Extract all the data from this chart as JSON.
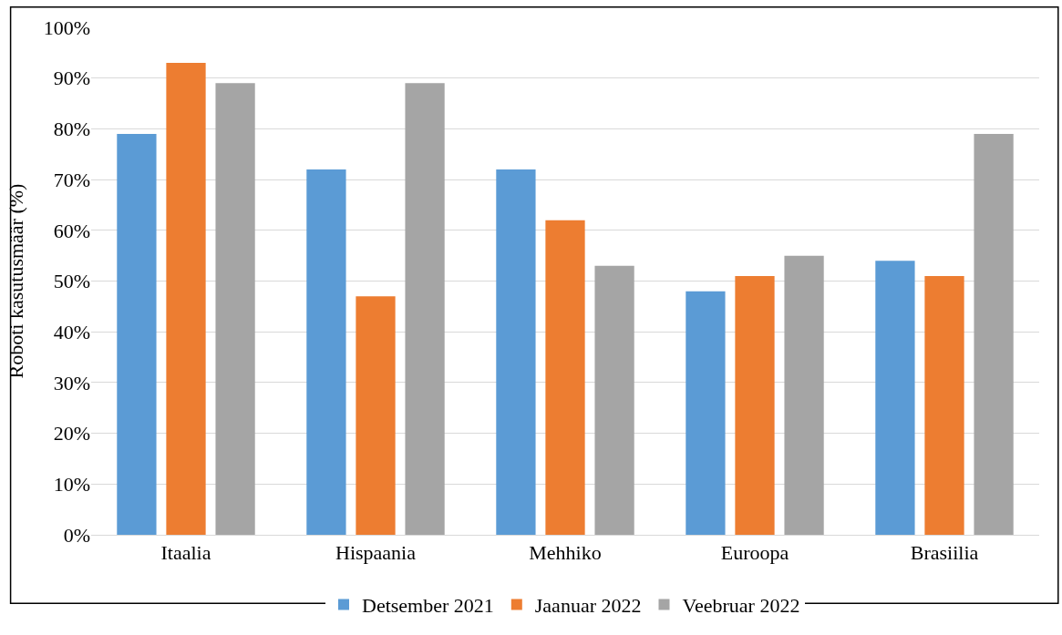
{
  "chart_data": {
    "type": "bar",
    "ylabel": "Roboti kasutusmäär (%)",
    "categories": [
      "Itaalia",
      "Hispaania",
      "Mehhiko",
      "Euroopa",
      "Brasiilia"
    ],
    "series": [
      {
        "name": "Detsember 2021",
        "color": "#5b9bd5",
        "values": [
          79,
          72,
          72,
          48,
          54
        ]
      },
      {
        "name": "Jaanuar 2022",
        "color": "#ed7d31",
        "values": [
          93,
          47,
          62,
          51,
          51
        ]
      },
      {
        "name": "Veebruar 2022",
        "color": "#a5a5a5",
        "values": [
          89,
          89,
          53,
          55,
          79
        ]
      }
    ],
    "ylim": [
      0,
      100
    ],
    "yticks": [
      {
        "value": 0,
        "label": "0%"
      },
      {
        "value": 10,
        "label": "10%"
      },
      {
        "value": 20,
        "label": "20%"
      },
      {
        "value": 30,
        "label": "30%"
      },
      {
        "value": 40,
        "label": "40%"
      },
      {
        "value": 50,
        "label": "50%"
      },
      {
        "value": 60,
        "label": "60%"
      },
      {
        "value": 70,
        "label": "70%"
      },
      {
        "value": 80,
        "label": "80%"
      },
      {
        "value": 90,
        "label": "90%"
      },
      {
        "value": 100,
        "label": "100%"
      }
    ],
    "grid": "y",
    "legend": "bottom"
  }
}
